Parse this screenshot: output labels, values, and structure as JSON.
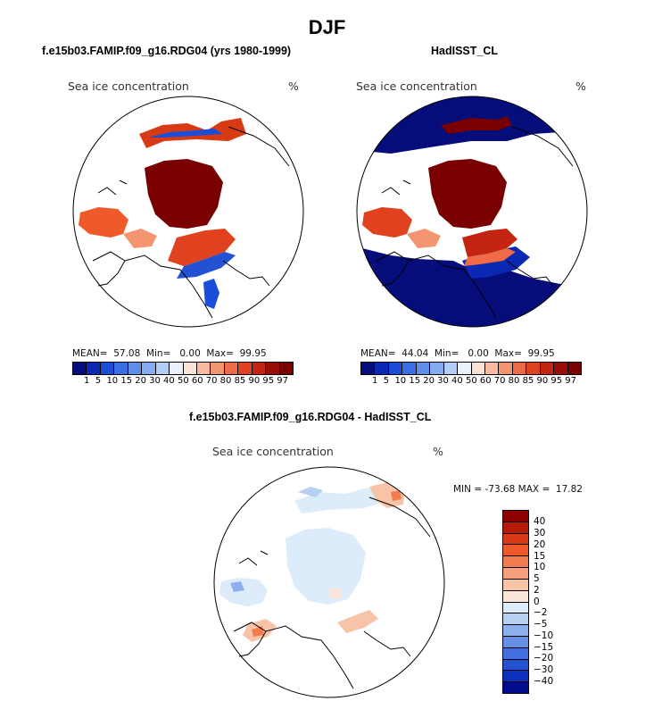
{
  "title": "DJF",
  "panels": {
    "model": {
      "subtitle": "f.e15b03.FAMIP.f09_g16.RDG04 (yrs 1980-1999)",
      "field_name": "Sea ice concentration",
      "units": "%",
      "stats": "MEAN=  57.08  Min=   0.00  Max=  99.95",
      "mean": 57.08,
      "min": 0.0,
      "max": 99.95
    },
    "obs": {
      "subtitle": "HadISST_CL",
      "field_name": "Sea ice concentration",
      "units": "%",
      "stats": "MEAN=  44.04  Min=   0.00  Max=  99.95",
      "mean": 44.04,
      "min": 0.0,
      "max": 99.95
    },
    "diff": {
      "subtitle": "f.e15b03.FAMIP.f09_g16.RDG04 - HadISST_CL",
      "field_name": "Sea ice concentration",
      "units": "%",
      "stats": "MIN = -73.68 MAX =  17.82",
      "min": -73.68,
      "max": 17.82
    }
  },
  "abs_colorbar": {
    "levels_text": "1  5  10 15 20 30 40 50 60 70 80 85 90 95 97",
    "levels": [
      1,
      5,
      10,
      15,
      20,
      30,
      40,
      50,
      60,
      70,
      80,
      85,
      90,
      95,
      97
    ],
    "colors": [
      "#050d7a",
      "#0a28b4",
      "#1b4ed8",
      "#3a6fe4",
      "#5e8eea",
      "#86acf0",
      "#b4cdf4",
      "#e9f1fb",
      "#fbe2d6",
      "#f8bb9f",
      "#f49572",
      "#ef6b48",
      "#e0411f",
      "#c32512",
      "#9a0d06",
      "#7a0000"
    ]
  },
  "diff_colorbar": {
    "labels": [
      "40",
      "30",
      "20",
      "15",
      "10",
      "5",
      "2",
      "0",
      "−2",
      "−5",
      "−10",
      "−15",
      "−20",
      "−30",
      "−40"
    ],
    "colors": [
      "#8c0000",
      "#b81a0a",
      "#d83a14",
      "#ee5a2a",
      "#f27c4e",
      "#f5a07c",
      "#f8c4a8",
      "#fbe6d8",
      "#dcecfa",
      "#b6d0f2",
      "#8cb0ec",
      "#6690e6",
      "#4470de",
      "#2450d2",
      "#0c30bc",
      "#000c8c"
    ]
  }
}
